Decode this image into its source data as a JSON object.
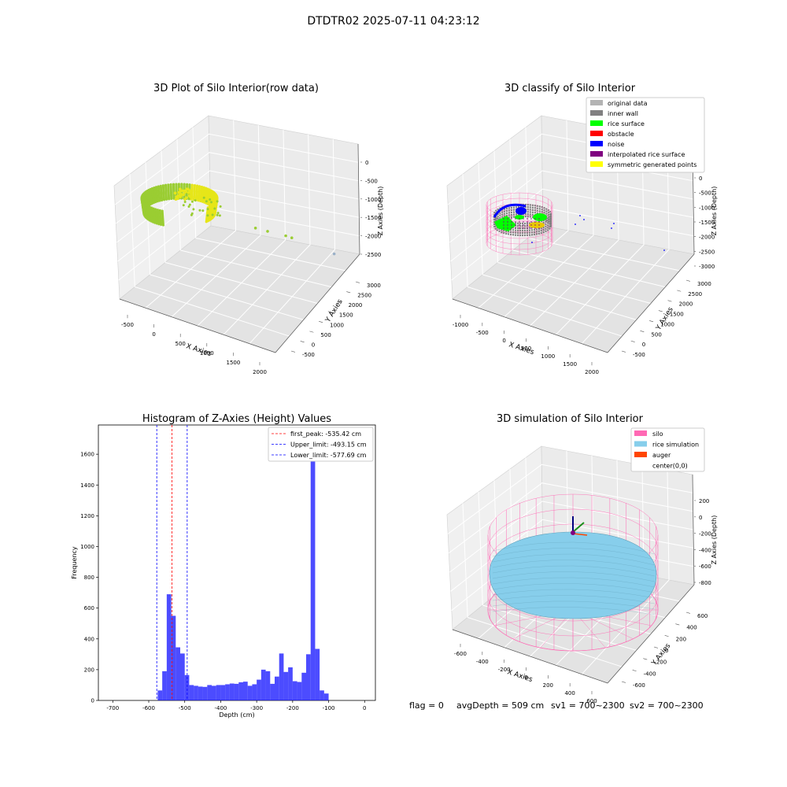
{
  "suptitle": "DTDTR02 2025-07-11 04:23:12",
  "footer": {
    "flag": "flag = 0",
    "avg_depth": "avgDepth = 509 cm",
    "sv1": "sv1 = 700~2300",
    "sv2": "sv2 = 700~2300"
  },
  "colors": {
    "rice_raw": "#9acd32",
    "raw_hot": "#e6e619",
    "gray_light": "#b3b3b3",
    "gray_dark": "#808080",
    "green": "#00ff00",
    "red": "#ff0000",
    "blue": "#0000ff",
    "purple": "#800080",
    "yellow": "#ffff00",
    "pink": "#ff69b4",
    "skyblue": "#87ceeb",
    "orange": "#ff4500",
    "hist_bar": "#0000ff",
    "first_peak_line": "#ff0000",
    "limit_line": "#0000ff",
    "pane": "#f0f0f0"
  },
  "chart_data": [
    {
      "type": "scatter",
      "title": "3D Plot of Silo Interior(row data)",
      "xlabel": "X Axies",
      "ylabel": "Y Axies",
      "zlabel": "Z Axies (Depth)",
      "x_ticks": [
        "-500",
        "0",
        "500",
        "1000",
        "1500",
        "2000"
      ],
      "y_ticks": [
        "-500",
        "0",
        "500",
        "1000",
        "1500",
        "2000",
        "2500",
        "3000"
      ],
      "z_ticks": [
        "0",
        "-500",
        "-1000",
        "-1500",
        "-2000",
        "-2500"
      ],
      "xlim": [
        -600,
        2000
      ],
      "ylim": [
        -600,
        3100
      ],
      "zlim": [
        -2800,
        0
      ],
      "outlier_points": [
        {
          "x": 500,
          "y": 600,
          "z": -1200
        },
        {
          "x": 700,
          "y": 900,
          "z": -1300
        },
        {
          "x": 1000,
          "y": 1500,
          "z": -1400
        },
        {
          "x": 1100,
          "y": 1700,
          "z": -1500
        },
        {
          "x": 1800,
          "y": 2500,
          "z": -2400
        }
      ]
    },
    {
      "type": "scatter",
      "title": "3D classify of Silo Interior",
      "xlabel": "X Axies",
      "ylabel": "Y Axies",
      "zlabel": "Z Axies (Depth)",
      "x_ticks": [
        "-1000",
        "-500",
        "0",
        "500",
        "1000",
        "1500",
        "2000"
      ],
      "y_ticks": [
        "-500",
        "0",
        "500",
        "1000",
        "1500",
        "2000",
        "2500",
        "3000"
      ],
      "z_ticks": [
        "0",
        "-500",
        "-1000",
        "-1500",
        "-2000",
        "-2500",
        "-3000"
      ],
      "xlim": [
        -1100,
        2200
      ],
      "ylim": [
        -600,
        3100
      ],
      "zlim": [
        -3100,
        0
      ],
      "legend": [
        "original data",
        "inner wall",
        "rice surface",
        "obstacle",
        "noise",
        "interpolated rice surface",
        "symmetric generated points"
      ],
      "legend_colors": [
        "#b3b3b3",
        "#808080",
        "#00ff00",
        "#ff0000",
        "#0000ff",
        "#800080",
        "#ffff00"
      ],
      "legend_location": "top-right"
    },
    {
      "type": "bar",
      "title": "Histogram of Z-Axies (Height) Values",
      "xlabel": "Depth (cm)",
      "ylabel": "Frequency",
      "xlim": [
        -740,
        30
      ],
      "ylim": [
        0,
        1790
      ],
      "x_ticks": [
        -700,
        -600,
        -500,
        -400,
        -300,
        -200,
        -100,
        0
      ],
      "y_ticks": [
        0,
        200,
        400,
        600,
        800,
        1000,
        1200,
        1400,
        1600
      ],
      "bin_start": -575,
      "bin_width": 12.5,
      "values": [
        65,
        190,
        690,
        550,
        345,
        305,
        165,
        100,
        95,
        90,
        88,
        100,
        95,
        100,
        100,
        105,
        110,
        108,
        118,
        122,
        95,
        105,
        135,
        200,
        190,
        108,
        155,
        305,
        185,
        215,
        125,
        120,
        180,
        300,
        1700,
        335,
        65,
        45
      ],
      "vlines": [
        {
          "label": "first_peak: -535.42 cm",
          "x": -535.42,
          "color": "#ff0000"
        },
        {
          "label": "Upper_limit: -493.15 cm",
          "x": -493.15,
          "color": "#0000ff"
        },
        {
          "label": "Lower_limit: -577.69 cm",
          "x": -577.69,
          "color": "#0000ff"
        }
      ],
      "legend_location": "top-right"
    },
    {
      "type": "scatter",
      "title": "3D simulation of Silo Interior",
      "xlabel": "X Axies",
      "ylabel": "Y Axies",
      "zlabel": "Z Axies (Depth)",
      "x_ticks": [
        "-600",
        "-400",
        "-200",
        "0",
        "200",
        "400",
        "600"
      ],
      "y_ticks": [
        "-600",
        "-400",
        "-200",
        "0",
        "200",
        "400",
        "600"
      ],
      "z_ticks": [
        "200",
        "0",
        "-200",
        "-400",
        "-600",
        "-800"
      ],
      "xlim": [
        -650,
        650
      ],
      "ylim": [
        -650,
        650
      ],
      "zlim": [
        -900,
        300
      ],
      "legend": [
        "silo",
        "rice simulation",
        "auger",
        "center(0,0)"
      ],
      "legend_colors": [
        "#ff69b4",
        "#87ceeb",
        "#ff4500",
        ""
      ],
      "legend_location": "top-right"
    }
  ]
}
